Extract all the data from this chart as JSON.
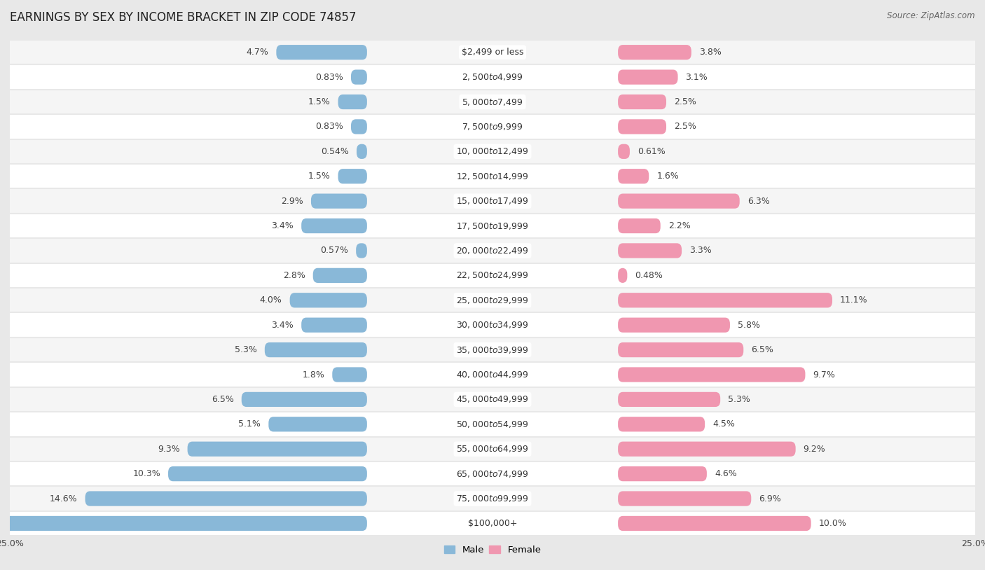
{
  "title": "EARNINGS BY SEX BY INCOME BRACKET IN ZIP CODE 74857",
  "source": "Source: ZipAtlas.com",
  "categories": [
    "$2,499 or less",
    "$2,500 to $4,999",
    "$5,000 to $7,499",
    "$7,500 to $9,999",
    "$10,000 to $12,499",
    "$12,500 to $14,999",
    "$15,000 to $17,499",
    "$17,500 to $19,999",
    "$20,000 to $22,499",
    "$22,500 to $24,999",
    "$25,000 to $29,999",
    "$30,000 to $34,999",
    "$35,000 to $39,999",
    "$40,000 to $44,999",
    "$45,000 to $49,999",
    "$50,000 to $54,999",
    "$55,000 to $64,999",
    "$65,000 to $74,999",
    "$75,000 to $99,999",
    "$100,000+"
  ],
  "male_values": [
    4.7,
    0.83,
    1.5,
    0.83,
    0.54,
    1.5,
    2.9,
    3.4,
    0.57,
    2.8,
    4.0,
    3.4,
    5.3,
    1.8,
    6.5,
    5.1,
    9.3,
    10.3,
    14.6,
    20.2
  ],
  "female_values": [
    3.8,
    3.1,
    2.5,
    2.5,
    0.61,
    1.6,
    6.3,
    2.2,
    3.3,
    0.48,
    11.1,
    5.8,
    6.5,
    9.7,
    5.3,
    4.5,
    9.2,
    4.6,
    6.9,
    10.0
  ],
  "male_color": "#89b8d8",
  "female_color": "#f097b0",
  "background_color": "#e8e8e8",
  "row_color_odd": "#f5f5f5",
  "row_color_even": "#ffffff",
  "x_max": 25.0,
  "title_fontsize": 12,
  "label_fontsize": 9,
  "category_fontsize": 9,
  "tick_fontsize": 9
}
